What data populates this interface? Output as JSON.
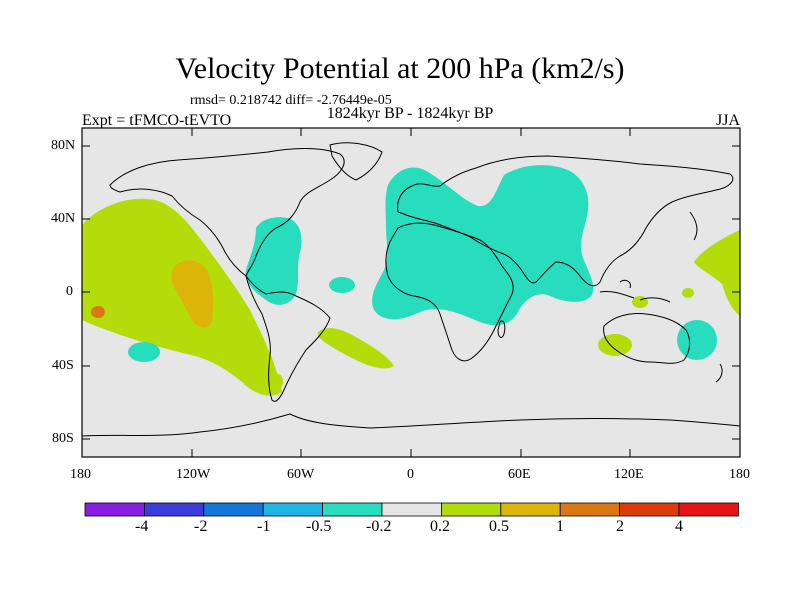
{
  "title": "Velocity Potential at 200 hPa (km2/s)",
  "stats": "rmsd= 0.218742 diff= -2.76449e-05",
  "subtitle": "1824kyr BP - 1824kyr BP",
  "left_label": "Expt = tFMCO-tEVTO",
  "right_label": "JJA",
  "lat_labels": [
    "80N",
    "40N",
    "0",
    "40S",
    "80S"
  ],
  "lon_labels": [
    "180",
    "120W",
    "60W",
    "0",
    "60E",
    "120E",
    "180"
  ],
  "colorbar": {
    "labels": [
      "-4",
      "-2",
      "-1",
      "-0.5",
      "-0.2",
      "0.2",
      "0.5",
      "1",
      "2",
      "4"
    ],
    "colors": [
      "#8a1ee0",
      "#3c3cdc",
      "#1478d8",
      "#1eb4e6",
      "#28dcbe",
      "#e6e6e6",
      "#b4dc0a",
      "#dcb40a",
      "#dc7814",
      "#dc3c0a",
      "#e61414"
    ]
  },
  "colors": {
    "ocean_bg": "#e6e6e6",
    "pos_02": "#b4dc0a",
    "pos_05": "#dcb40a",
    "pos_1": "#dc7814",
    "neg_02": "#28dcbe"
  }
}
